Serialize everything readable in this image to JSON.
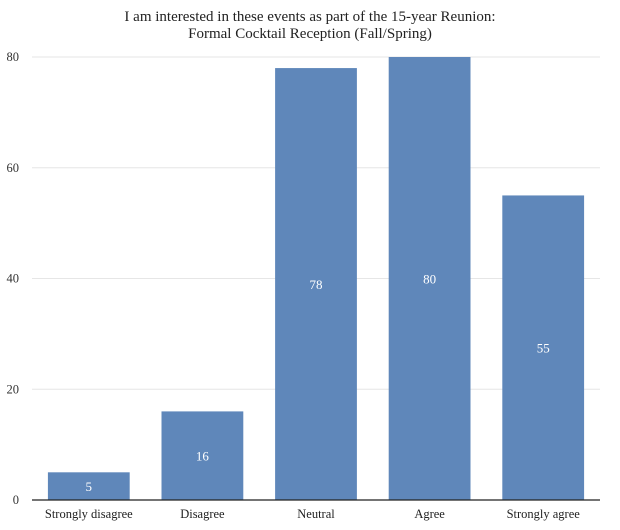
{
  "chart_data": {
    "type": "bar",
    "title": "I am interested in these events as part of the 15-year Reunion:",
    "subtitle": "Formal Cocktail Reception (Fall/Spring)",
    "xlabel": "",
    "ylabel": "",
    "categories": [
      "Strongly disagree",
      "Disagree",
      "Neutral",
      "Agree",
      "Strongly agree"
    ],
    "values": [
      5,
      16,
      78,
      80,
      55
    ],
    "data_labels": [
      "5",
      "16",
      "78",
      "80",
      "55"
    ],
    "ylim": [
      0,
      80
    ],
    "yticks": [
      0,
      20,
      40,
      60,
      80
    ],
    "ytick_labels": [
      "0",
      "20",
      "40",
      "60",
      "80"
    ],
    "grid": true,
    "legend": "none",
    "colors": {
      "bar": "#5f87ba",
      "grid": "#e6e6e6",
      "axis": "#222222",
      "label_text": "#ffffff"
    }
  }
}
